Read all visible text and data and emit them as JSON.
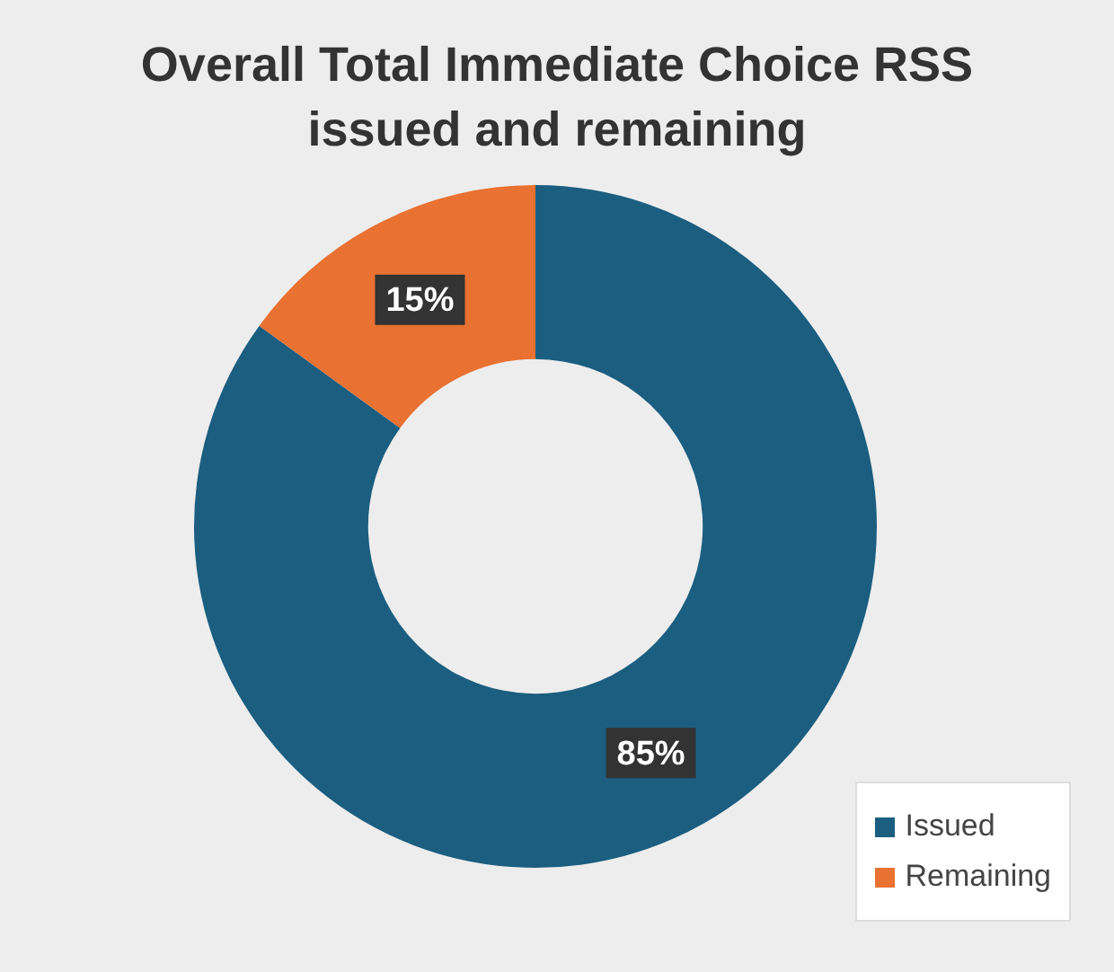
{
  "chart_data": {
    "type": "donut",
    "title": "Overall Total Immediate Choice RSS issued and remaining",
    "categories": [
      "Issued",
      "Remaining"
    ],
    "values": [
      85,
      15
    ],
    "colors": [
      "#1b5e80",
      "#e97132"
    ],
    "value_labels": [
      "85%",
      "15%"
    ],
    "legend": "bottom right"
  }
}
